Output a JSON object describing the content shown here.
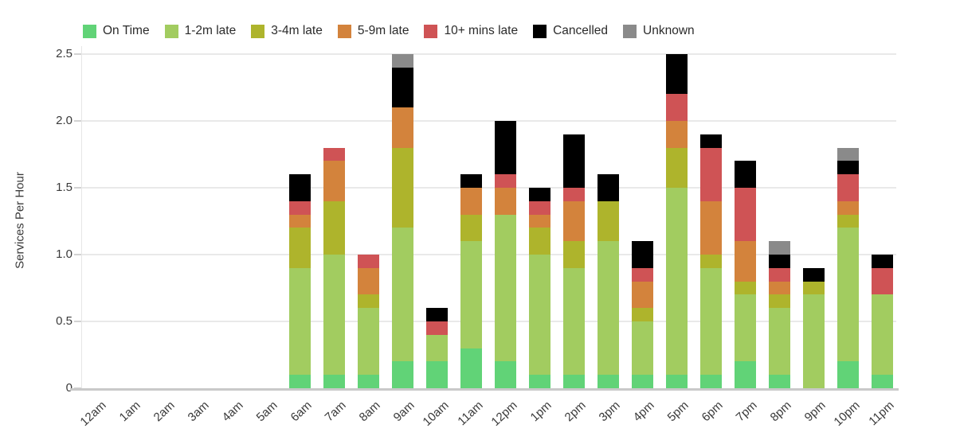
{
  "chart_data": {
    "type": "bar",
    "stacked": true,
    "title": "",
    "xlabel": "",
    "ylabel": "Services Per Hour",
    "ylim": [
      0,
      2.5
    ],
    "grid": true,
    "legend_position": "top",
    "yticks": [
      {
        "value": 0,
        "label": "0"
      },
      {
        "value": 0.5,
        "label": "0.5"
      },
      {
        "value": 1.0,
        "label": "1.0"
      },
      {
        "value": 1.5,
        "label": "1.5"
      },
      {
        "value": 2.0,
        "label": "2.0"
      },
      {
        "value": 2.5,
        "label": "2.5"
      }
    ],
    "categories": [
      "12am",
      "1am",
      "2am",
      "3am",
      "4am",
      "5am",
      "6am",
      "7am",
      "8am",
      "9am",
      "10am",
      "11am",
      "12pm",
      "1pm",
      "2pm",
      "3pm",
      "4pm",
      "5pm",
      "6pm",
      "7pm",
      "8pm",
      "9pm",
      "10pm",
      "11pm"
    ],
    "series": [
      {
        "name": "On Time",
        "color": "#61d377",
        "values": [
          0,
          0,
          0,
          0,
          0,
          0,
          0.1,
          0.1,
          0.1,
          0.2,
          0.2,
          0.3,
          0.2,
          0.1,
          0.1,
          0.1,
          0.1,
          0.1,
          0.1,
          0.2,
          0.1,
          0,
          0.2,
          0.1
        ]
      },
      {
        "name": "1-2m late",
        "color": "#a2cc60",
        "values": [
          0,
          0,
          0,
          0,
          0,
          0,
          0.8,
          0.9,
          0.5,
          1.0,
          0.2,
          0.8,
          1.1,
          0.9,
          0.8,
          1.0,
          0.4,
          1.4,
          0.8,
          0.5,
          0.5,
          0.7,
          1.0,
          0.6
        ]
      },
      {
        "name": "3-4m late",
        "color": "#aeb42c",
        "values": [
          0,
          0,
          0,
          0,
          0,
          0,
          0.3,
          0.4,
          0.1,
          0.6,
          0,
          0.2,
          0,
          0.2,
          0.2,
          0.3,
          0.1,
          0.3,
          0.1,
          0.1,
          0.1,
          0.1,
          0.1,
          0
        ]
      },
      {
        "name": "5-9m late",
        "color": "#d3833c",
        "values": [
          0,
          0,
          0,
          0,
          0,
          0,
          0.1,
          0.3,
          0.2,
          0.3,
          0,
          0.2,
          0.2,
          0.1,
          0.3,
          0,
          0.2,
          0.2,
          0.4,
          0.3,
          0.1,
          0,
          0.1,
          0
        ]
      },
      {
        "name": "10+ mins late",
        "color": "#cf5355",
        "values": [
          0,
          0,
          0,
          0,
          0,
          0,
          0.1,
          0.1,
          0.1,
          0,
          0.1,
          0,
          0.1,
          0.1,
          0.1,
          0,
          0.1,
          0.2,
          0.4,
          0.4,
          0.1,
          0,
          0.2,
          0.2
        ]
      },
      {
        "name": "Cancelled",
        "color": "#000000",
        "values": [
          0,
          0,
          0,
          0,
          0,
          0,
          0.2,
          0,
          0,
          0.3,
          0.1,
          0.1,
          0.4,
          0.1,
          0.4,
          0.2,
          0.2,
          0.3,
          0.1,
          0.2,
          0.1,
          0.1,
          0.1,
          0.1
        ]
      },
      {
        "name": "Unknown",
        "color": "#8a8a8a",
        "values": [
          0,
          0,
          0,
          0,
          0,
          0,
          0,
          0,
          0,
          0.1,
          0,
          0,
          0,
          0,
          0,
          0,
          0,
          0,
          0,
          0,
          0.1,
          0,
          0.1,
          0
        ]
      }
    ]
  }
}
